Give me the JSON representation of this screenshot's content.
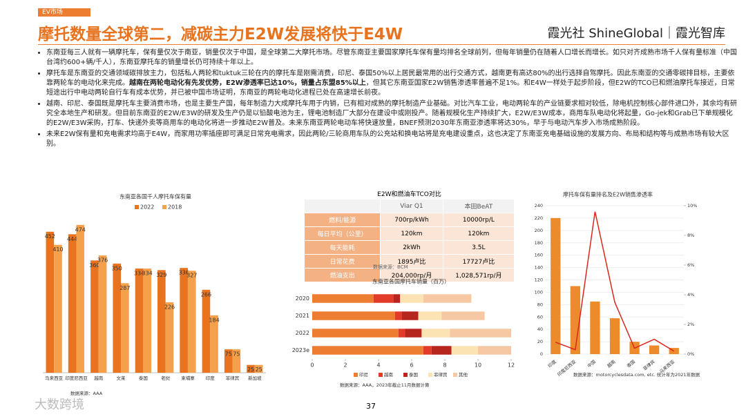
{
  "header": {
    "tag": "EV市场",
    "title": "摩托数量全球第二，减碳主力E2W发展将快于E4W",
    "logo": "霞光社 ShineGlobal｜霞光智库"
  },
  "bullets": [
    [
      {
        "text": "东南亚每三人就有一辆摩托车，保有量仅次于南亚，销量仅次于中国，是全球第二大摩托市场。尽管东南亚主要国家摩托车保有量均排名全球前列，但每年销量仍在随着人口增长而增长。如只对齐成熟市场千人保有量标准（中国台湾约600+辆/千人），东南亚摩托车的销量增长仍可持续十年以上。"
      }
    ],
    [
      {
        "text": "摩托车是东南亚的交通领域碳排放主力，包括私人两轮和tuktuk三轮在内的摩托车是刚需消费，印尼、泰国50%以上居民最常用的出行交通方式，越南更有高达80%的出行选择自驾摩托。因此东南亚的交通零碳排目标，主要依靠两轮车的电动化来完成。"
      },
      {
        "text": "越南在两轮电动化有先发优势，E2W渗透率已达10%，销量占东盟85%以上",
        "bold": true
      },
      {
        "text": "，但其它东南亚国家E2W销售渗透率普遍不足1%。和E4W一样处于起步阶段，但E2W的TCO已和燃油摩托车接近，日常短途出行中电动两轮自行车有成本优势，并已被中国市场证明，东南亚的两轮电动化进程已处在高速增长前夜。"
      }
    ],
    [
      {
        "text": "越南、印尼、泰国既是摩托车主要消费市场，也是主要生产国，每年制造力大成摩托车用于内销，已有相对成熟的摩托制造产业基础。对比汽车工业，电动两轮车的产业链要求相对较低，除电机控制核心部件进口外，其余均有研究全本地生产和研发。但目前东南亚的E2W/E3W的研发及生产仍是以铅酸电池为主，锂电池制造厂大部分在建设中或刚投产。随着规模化生产持续扩大，E2W/E3W成本，商用车队电动化将起量，Go-jek和Grab已下单规模化的E2W/E3W采购，打车、快递外卖等商用车的电动化将进一步推动E2W普及。未来东南亚两轮电动车将快速放量，BNEF预测2030年东南亚渗透率将达30%，早于与电动汽车步入市场成熟阶段。"
      }
    ],
    [
      {
        "text": "未来E2W保有量和充电需求均高于E4W，而家用功率插座即可满足日常充电需求，因此两轮/三轮商用车队的公充站和换电站将是充电建设重点，这也决定了东南亚充电基础设施的发展方向、布局和结构等与成熟市场有较大区别。"
      }
    ]
  ],
  "table": {
    "title": "E2W和燃油车TCO对比",
    "columns": [
      "",
      "Viar Q1",
      "本田BeAT"
    ],
    "rows": [
      [
        "燃料/能源",
        "700rp/kWh",
        "10000rp/L"
      ],
      [
        "每日平均（公里）",
        "120km",
        "120km"
      ],
      [
        "每天能耗",
        "2kWh",
        "3.5L"
      ],
      [
        "日常花费",
        "1895卢比",
        "17727卢比"
      ],
      [
        "燃油支出",
        "204,000rp/月",
        "1,028,571rp/月"
      ]
    ],
    "source": "数据来源：BCM"
  },
  "chart_data": [
    {
      "type": "bar",
      "title": "东南亚各国千人摩托车保有量",
      "source": "数据来源：AAA",
      "categories": [
        "马来西亚",
        "印度尼西亚",
        "越南",
        "文莱",
        "泰国",
        "老挝",
        "柬埔寨",
        "印度",
        "菲律宾",
        "新加坡"
      ],
      "series": [
        {
          "name": "2022",
          "color": "#e9731e",
          "values": [
            452,
            444,
            360,
            350,
            334,
            329,
            336,
            266,
            75,
            25
          ]
        },
        {
          "name": "2018",
          "color": "#f5a04a",
          "values": [
            410,
            474,
            376,
            287,
            334,
            226,
            327,
            184,
            75,
            25
          ]
        }
      ],
      "ylim": [
        0,
        520
      ],
      "legend": "top"
    },
    {
      "type": "stacked-barh",
      "title": "东南亚各国摩托车销量（百万）",
      "source": "数据来源：AAA，2023年截止11月数据计算",
      "categories": [
        "2020",
        "2021",
        "2022",
        "2023e"
      ],
      "series": [
        {
          "name": "印尼",
          "color": "#ed7d31",
          "values": [
            3.7,
            5.0,
            5.2,
            6.7
          ]
        },
        {
          "name": "越南",
          "color": "#e23b2a",
          "values": [
            1.2,
            0.4,
            0.4,
            0.5
          ]
        },
        {
          "name": "泰国",
          "color": "#b7261e",
          "values": [
            0.4,
            1.0,
            1.0,
            1.2
          ]
        },
        {
          "name": "菲律宾",
          "color": "#fbe3b4",
          "values": [
            1.4,
            1.4,
            1.7,
            1.6
          ]
        },
        {
          "name": "其他",
          "color": "#f6c9a4",
          "values": [
            2.9,
            2.6,
            3.7,
            2.0
          ]
        }
      ],
      "xlim": [
        0,
        12
      ],
      "xticks": [
        0,
        2,
        4,
        6,
        8,
        10,
        12
      ],
      "legend": "bottom"
    },
    {
      "type": "bar-line",
      "title": "摩托车保有量排名及E2W销售渗透率",
      "source": "数据来源：motorcyclesdata.com, etc. 统计年为2021年数据",
      "categories": [
        "印度",
        "印度尼西亚",
        "中国",
        "越南",
        "泰国",
        "菲律宾",
        "马来西亚"
      ],
      "series": [
        {
          "name": "保有量",
          "color": "#ed8b2a",
          "values": [
            220,
            110,
            85,
            58,
            20,
            14,
            10
          ]
        },
        {
          "name": "渗透率",
          "color": "#d9261c",
          "axis": "y2",
          "values": [
            0.8,
            0.3,
            9.6,
            3.5,
            0.4,
            1.0,
            0.2
          ]
        }
      ],
      "ylim": [
        0,
        240
      ],
      "yticks": [
        0,
        20,
        40,
        60,
        80,
        100,
        120,
        140,
        160,
        180,
        200,
        220,
        240
      ],
      "y2lim": [
        0,
        10
      ],
      "y2ticks": [
        {
          "value": 0,
          "label": "0%"
        },
        {
          "value": 2,
          "label": "2%"
        },
        {
          "value": 4,
          "label": "4%"
        },
        {
          "value": 6,
          "label": "6%"
        },
        {
          "value": 8,
          "label": "8%"
        },
        {
          "value": 10,
          "label": "10%"
        }
      ]
    }
  ],
  "footer": {
    "page": "37",
    "watermark": "大数跨境"
  }
}
